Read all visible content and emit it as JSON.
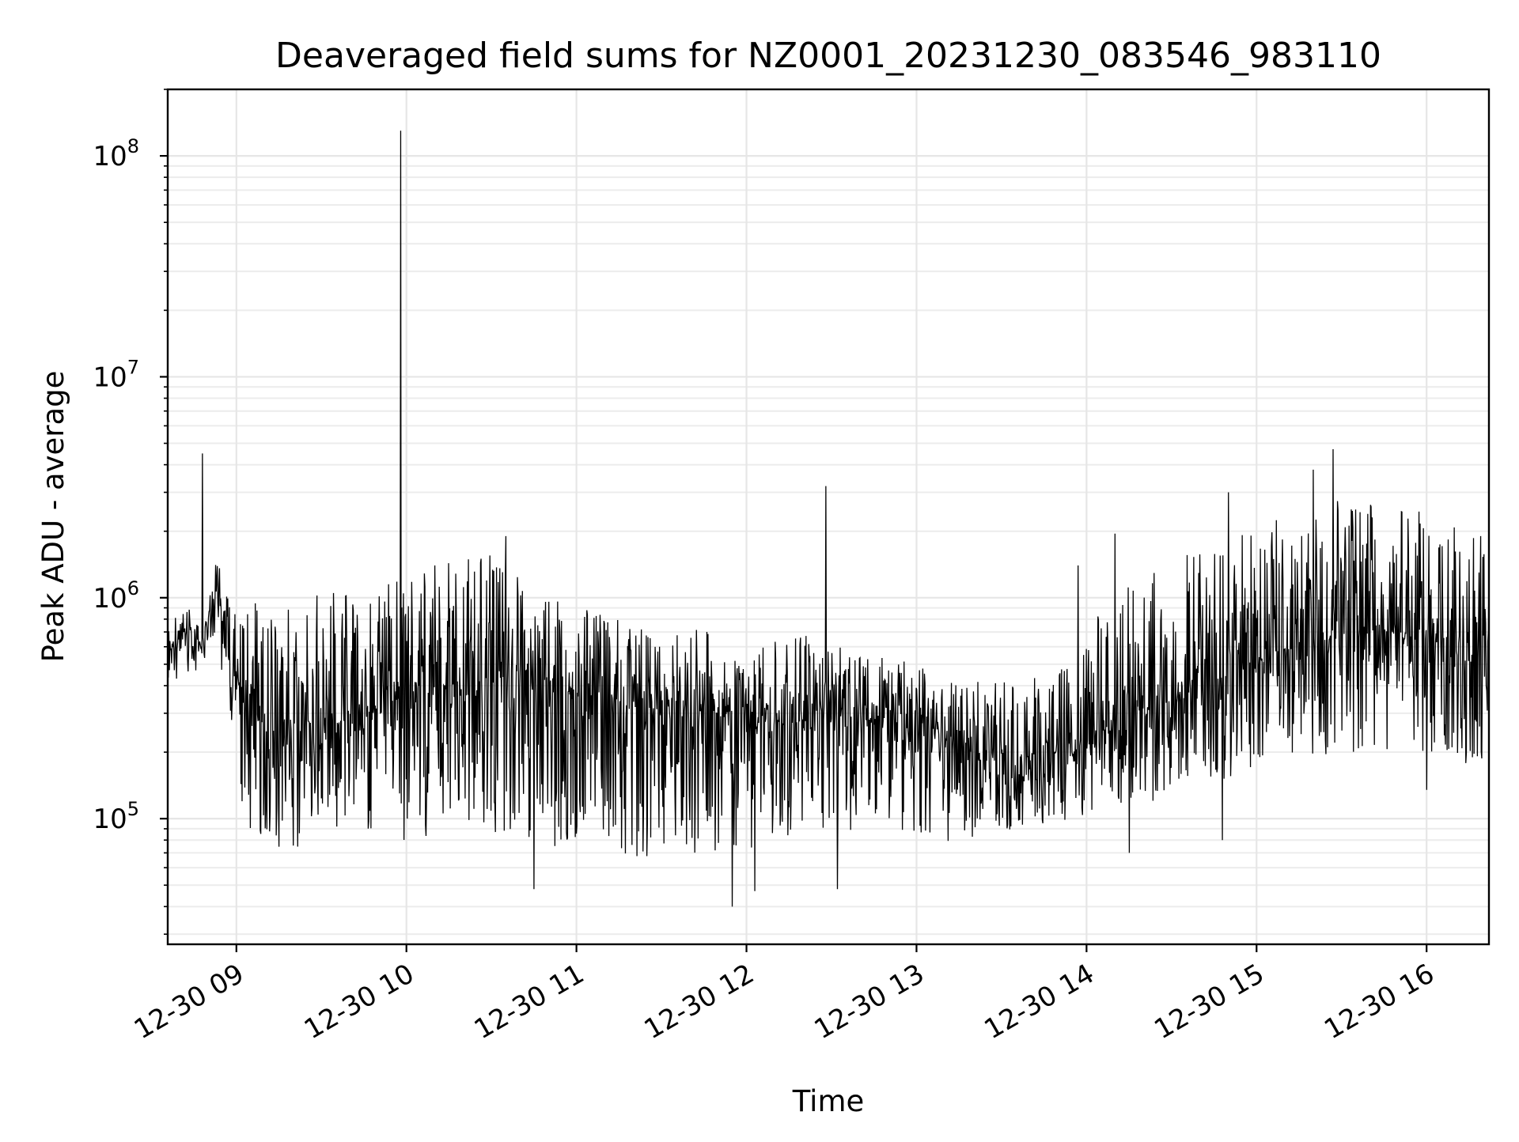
{
  "chart_data": {
    "type": "line",
    "title": "Deaveraged field sums for NZ0001_20231230_083546_983110",
    "xlabel": "Time",
    "ylabel": "Peak ADU - average",
    "x_scale": "time",
    "y_scale": "log",
    "xlim": [
      "2023-12-30 08:35:46",
      "2023-12-30 16:22:00"
    ],
    "ylim": [
      27000,
      200000000
    ],
    "x_tick_labels": [
      "12-30 09",
      "12-30 10",
      "12-30 11",
      "12-30 12",
      "12-30 13",
      "12-30 14",
      "12-30 15",
      "12-30 16"
    ],
    "y_ticks": [
      {
        "value": 100000,
        "base": "10",
        "exponent": "5"
      },
      {
        "value": 1000000,
        "base": "10",
        "exponent": "6"
      },
      {
        "value": 10000000,
        "base": "10",
        "exponent": "7"
      },
      {
        "value": 100000000,
        "base": "10",
        "exponent": "8"
      }
    ],
    "grid": true,
    "legend": "none",
    "line_color": "#000000",
    "series": [
      {
        "x": [
          "2023-12-30 08:35:46",
          "2023-12-30 08:43",
          "2023-12-30 08:48",
          "2023-12-30 08:53",
          "2023-12-30 08:58",
          "2023-12-30 09:03",
          "2023-12-30 09:10",
          "2023-12-30 09:20",
          "2023-12-30 09:30",
          "2023-12-30 09:40",
          "2023-12-30 09:50",
          "2023-12-30 09:58",
          "2023-12-30 10:10",
          "2023-12-30 10:20",
          "2023-12-30 10:30",
          "2023-12-30 10:40",
          "2023-12-30 10:50",
          "2023-12-30 11:00",
          "2023-12-30 11:10",
          "2023-12-30 11:20",
          "2023-12-30 11:30",
          "2023-12-30 11:40",
          "2023-12-30 11:50",
          "2023-12-30 12:00",
          "2023-12-30 12:10",
          "2023-12-30 12:20",
          "2023-12-30 12:28",
          "2023-12-30 12:35",
          "2023-12-30 12:45",
          "2023-12-30 12:55",
          "2023-12-30 13:05",
          "2023-12-30 13:15",
          "2023-12-30 13:25",
          "2023-12-30 13:35",
          "2023-12-30 13:45",
          "2023-12-30 13:55",
          "2023-12-30 14:05",
          "2023-12-30 14:15",
          "2023-12-30 14:25",
          "2023-12-30 14:35",
          "2023-12-30 14:45",
          "2023-12-30 14:55",
          "2023-12-30 15:05",
          "2023-12-30 15:15",
          "2023-12-30 15:25",
          "2023-12-30 15:35",
          "2023-12-30 15:45",
          "2023-12-30 15:55",
          "2023-12-30 16:05",
          "2023-12-30 16:15",
          "2023-12-30 16:22"
        ],
        "center": [
          560000,
          700000,
          600000,
          1200000,
          500000,
          300000,
          260000,
          250000,
          260000,
          270000,
          300000,
          380000,
          400000,
          400000,
          430000,
          430000,
          420000,
          380000,
          350000,
          330000,
          310000,
          300000,
          300000,
          290000,
          280000,
          270000,
          300000,
          290000,
          280000,
          270000,
          250000,
          220000,
          200000,
          190000,
          190000,
          200000,
          250000,
          300000,
          330000,
          370000,
          420000,
          500000,
          560000,
          600000,
          650000,
          700000,
          720000,
          680000,
          620000,
          600000,
          620000
        ],
        "band_high": [
          780000,
          900000,
          700000,
          1500000,
          1000000,
          950000,
          950000,
          980000,
          1050000,
          1100000,
          1150000,
          1200000,
          1450000,
          1600000,
          1700000,
          1300000,
          1000000,
          900000,
          850000,
          750000,
          740000,
          720000,
          700000,
          720000,
          700000,
          700000,
          650000,
          620000,
          580000,
          520000,
          480000,
          440000,
          420000,
          430000,
          450000,
          500000,
          900000,
          1300000,
          1300000,
          1600000,
          1700000,
          2000000,
          2300000,
          2300000,
          2800000,
          2900000,
          2600000,
          2500000,
          2500000,
          2300000,
          1800000
        ],
        "band_low": [
          400000,
          450000,
          480000,
          700000,
          200000,
          95000,
          75000,
          70000,
          80000,
          90000,
          90000,
          80000,
          80000,
          85000,
          85000,
          85000,
          75000,
          70000,
          65000,
          65000,
          70000,
          70000,
          70000,
          68000,
          80000,
          85000,
          90000,
          88000,
          86000,
          82000,
          78000,
          80000,
          85000,
          90000,
          95000,
          100000,
          110000,
          115000,
          120000,
          130000,
          140000,
          150000,
          170000,
          180000,
          190000,
          200000,
          200000,
          190000,
          180000,
          170000,
          180000
        ],
        "spikes": [
          {
            "x": "2023-12-30 08:48",
            "y": 4500000
          },
          {
            "x": "2023-12-30 09:58",
            "y": 130000000
          },
          {
            "x": "2023-12-30 12:28",
            "y": 3200000
          },
          {
            "x": "2023-12-30 15:27",
            "y": 4700000
          },
          {
            "x": "2023-12-30 15:20",
            "y": 3800000
          },
          {
            "x": "2023-12-30 14:50",
            "y": 3000000
          },
          {
            "x": "2023-12-30 11:55",
            "y": 40000
          },
          {
            "x": "2023-12-30 12:03",
            "y": 47000
          },
          {
            "x": "2023-12-30 10:45",
            "y": 48000
          },
          {
            "x": "2023-12-30 12:32",
            "y": 48000
          },
          {
            "x": "2023-12-30 14:48",
            "y": 80000
          },
          {
            "x": "2023-12-30 14:15",
            "y": 70000
          },
          {
            "x": "2023-12-30 16:00",
            "y": 135000
          },
          {
            "x": "2023-12-30 10:10",
            "y": 1400000
          },
          {
            "x": "2023-12-30 10:35",
            "y": 1900000
          },
          {
            "x": "2023-12-30 13:57",
            "y": 1400000
          },
          {
            "x": "2023-12-30 14:10",
            "y": 1950000
          }
        ]
      }
    ]
  }
}
